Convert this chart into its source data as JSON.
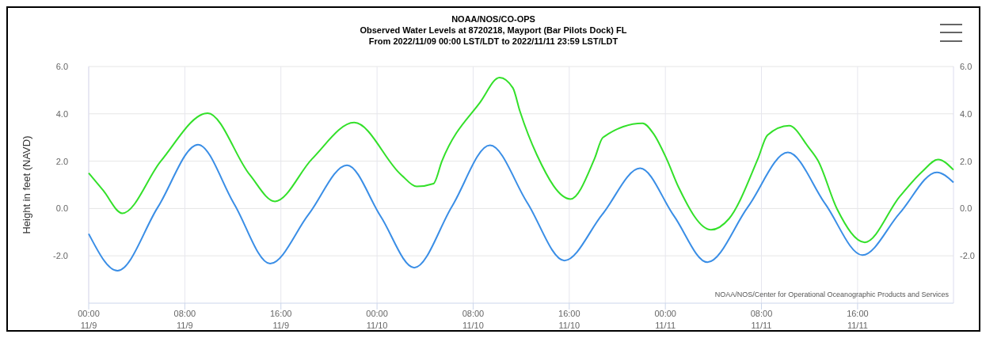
{
  "chart_data": {
    "type": "line",
    "title": "NOAA/NOS/CO-OPS",
    "subtitle": "Observed Water Levels at 8720218, Mayport (Bar Pilots Dock) FL\nFrom 2022/11/09 00:00 LST/LDT to 2022/11/11 23:59 LST/LDT",
    "ylabel": "Height in feet (NAVD)",
    "annotations": [
      "NOAA/NOS/Center for Operational Oceanographic Products and Services"
    ],
    "xlim": [
      "2022-11-09T00:00",
      "2022-11-11T23:59"
    ],
    "xticks": [
      {
        "value": "2022-11-09T00:00",
        "label": "00:00\n11/9"
      },
      {
        "value": "2022-11-09T08:00",
        "label": "08:00\n11/9"
      },
      {
        "value": "2022-11-09T16:00",
        "label": "16:00\n11/9"
      },
      {
        "value": "2022-11-10T00:00",
        "label": "00:00\n11/10"
      },
      {
        "value": "2022-11-10T08:00",
        "label": "08:00\n11/10"
      },
      {
        "value": "2022-11-10T16:00",
        "label": "16:00\n11/10"
      },
      {
        "value": "2022-11-11T00:00",
        "label": "00:00\n11/11"
      },
      {
        "value": "2022-11-11T08:00",
        "label": "08:00\n11/11"
      },
      {
        "value": "2022-11-11T16:00",
        "label": "16:00\n11/11"
      }
    ],
    "ylim": [
      -4,
      6
    ],
    "yticks": [
      {
        "value": -2,
        "label": "-2.0"
      },
      {
        "value": 0,
        "label": "0.0"
      },
      {
        "value": 2,
        "label": "2.0"
      },
      {
        "value": 4,
        "label": "4.0"
      },
      {
        "value": 6,
        "label": "6.0"
      }
    ],
    "y2lim": [
      -4,
      6
    ],
    "y2ticks": [
      {
        "value": -2,
        "label": "-2.0"
      },
      {
        "value": 0,
        "label": "0.0"
      },
      {
        "value": 2,
        "label": "2.0"
      },
      {
        "value": 4,
        "label": "4.0"
      },
      {
        "value": 6,
        "label": "6.0"
      }
    ],
    "grid": true,
    "marker": "none",
    "line_style": "solid",
    "series": [
      {
        "color": "#3a8ee6",
        "x": [
          "2022-11-09T00:00",
          "2022-11-09T02:24",
          "2022-11-09T05:45",
          "2022-11-09T09:06",
          "2022-11-09T12:06",
          "2022-11-09T15:06",
          "2022-11-09T18:18",
          "2022-11-09T21:30",
          "2022-11-10T00:18",
          "2022-11-10T03:06",
          "2022-11-10T06:15",
          "2022-11-10T09:24",
          "2022-11-10T12:30",
          "2022-11-10T15:36",
          "2022-11-10T18:45",
          "2022-11-10T21:54",
          "2022-11-11T00:42",
          "2022-11-11T03:30",
          "2022-11-11T06:51",
          "2022-11-11T10:12",
          "2022-11-11T13:18",
          "2022-11-11T16:24",
          "2022-11-11T19:30",
          "2022-11-11T22:36",
          "2022-11-11T23:59"
        ],
        "values": [
          -1.07,
          -2.63,
          0.05,
          2.7,
          0.2,
          -2.33,
          -0.25,
          1.83,
          -0.33,
          -2.5,
          0.1,
          2.67,
          0.25,
          -2.2,
          -0.25,
          1.7,
          -0.3,
          -2.27,
          0.05,
          2.37,
          0.2,
          -1.97,
          -0.2,
          1.53,
          1.1
        ]
      },
      {
        "color": "#33e02a",
        "x": [
          "2022-11-09T00:00",
          "2022-11-09T01:12",
          "2022-11-09T02:48",
          "2022-11-09T06:00",
          "2022-11-09T09:54",
          "2022-11-09T13:24",
          "2022-11-09T15:30",
          "2022-11-09T18:36",
          "2022-11-09T22:06",
          "2022-11-10T02:00",
          "2022-11-10T03:18",
          "2022-11-10T04:42",
          "2022-11-10T05:24",
          "2022-11-10T08:36",
          "2022-11-10T10:12",
          "2022-11-10T11:18",
          "2022-11-10T11:54",
          "2022-11-10T13:18",
          "2022-11-10T16:06",
          "2022-11-10T18:06",
          "2022-11-10T18:48",
          "2022-11-10T22:06",
          "2022-11-10T23:00",
          "2022-11-11T00:06",
          "2022-11-11T01:06",
          "2022-11-11T03:48",
          "2022-11-11T05:18",
          "2022-11-11T07:42",
          "2022-11-11T08:30",
          "2022-11-11T10:18",
          "2022-11-11T11:54",
          "2022-11-11T12:42",
          "2022-11-11T14:18",
          "2022-11-11T16:36",
          "2022-11-11T19:30",
          "2022-11-11T21:24",
          "2022-11-11T22:42",
          "2022-11-11T23:59"
        ],
        "values": [
          1.5,
          0.77,
          -0.2,
          2.0,
          4.03,
          1.43,
          0.3,
          2.1,
          3.63,
          1.43,
          0.93,
          1.05,
          2.0,
          4.5,
          5.53,
          5.1,
          4.1,
          2.27,
          0.4,
          2.1,
          3.0,
          3.6,
          3.17,
          2.1,
          0.9,
          -0.9,
          -0.43,
          2.1,
          3.1,
          3.5,
          2.6,
          2.03,
          -0.03,
          -1.43,
          0.5,
          1.57,
          2.07,
          1.63
        ]
      }
    ]
  }
}
